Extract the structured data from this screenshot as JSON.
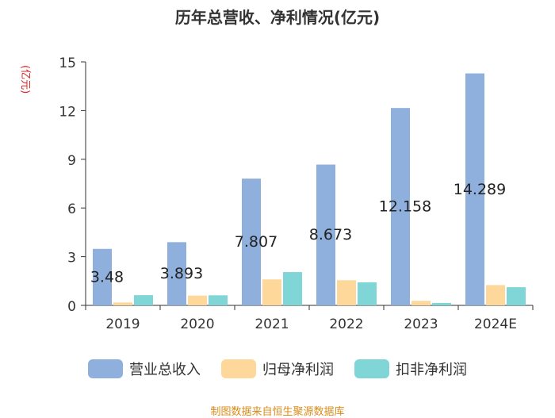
{
  "chart_data": {
    "type": "bar",
    "title": "历年总营收、净利情况(亿元)",
    "ylabel": "(亿元)",
    "ylim": [
      0,
      15
    ],
    "yticks": [
      0,
      3,
      6,
      9,
      12,
      15
    ],
    "categories": [
      "2019",
      "2020",
      "2021",
      "2022",
      "2023",
      "2024E"
    ],
    "series": [
      {
        "name": "营业总收入",
        "color": "#8fb0dd",
        "values": [
          3.48,
          3.893,
          7.807,
          8.673,
          12.158,
          14.289
        ],
        "labels": [
          "3.48",
          "3.893",
          "7.807",
          "8.673",
          "12.158",
          "14.289"
        ]
      },
      {
        "name": "归母净利润",
        "color": "#fdd89a",
        "values": [
          0.18,
          0.6,
          1.6,
          1.55,
          0.28,
          1.25
        ]
      },
      {
        "name": "扣非净利润",
        "color": "#80d6d6",
        "values": [
          0.63,
          0.62,
          2.05,
          1.42,
          0.15,
          1.12
        ]
      }
    ]
  },
  "source": "制图数据来自恒生聚源数据库"
}
